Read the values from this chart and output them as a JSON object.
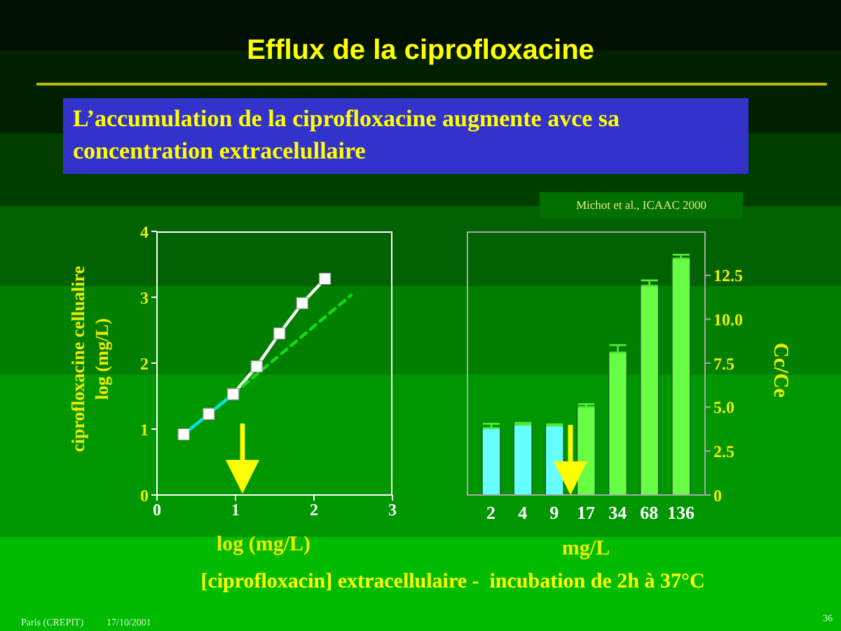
{
  "chart_data": [
    {
      "type": "other",
      "title": "Efflux de la ciprofloxacine",
      "subtitle": "L’accumulation de la ciprofloxacine augmente avce sa concentration extracelullaire",
      "annotations": [
        "[ciprofloxacin] extracellulaire -  incubation de 2h à 37°C",
        "Paris (CREPIT)",
        "17/10/2001",
        "36"
      ]
    },
    {
      "type": "line",
      "xlabel": "log (mg/L)",
      "ylabel": "ciprofloxacine cellualire\nlog (mg/L)",
      "xlim": [
        0,
        3
      ],
      "xticks": [
        0,
        1,
        2,
        3
      ],
      "ylim": [
        0,
        4
      ],
      "yticks": [
        0,
        1,
        2,
        3,
        4
      ],
      "series": [
        {
          "type": "line",
          "color": "#00e5ee",
          "x": [
            0.34,
            0.66,
            0.97
          ],
          "values": [
            0.92,
            1.23,
            1.53
          ]
        },
        {
          "type": "line",
          "color": "#ffffff",
          "x": [
            0.97,
            1.27,
            1.56,
            1.85,
            2.14
          ],
          "values": [
            1.53,
            1.95,
            2.45,
            2.91,
            3.28
          ]
        },
        {
          "type": "line",
          "color": "#11dd11",
          "line_style": "dashed",
          "x": [
            0.97,
            2.47
          ],
          "values": [
            1.53,
            3.03
          ]
        },
        {
          "type": "scatter",
          "color": "#ffffff",
          "marker": "square",
          "x": [
            0.34,
            0.66,
            0.97,
            1.27,
            1.56,
            1.85,
            2.14
          ],
          "values": [
            0.92,
            1.23,
            1.53,
            1.95,
            2.45,
            2.91,
            3.28
          ]
        }
      ]
    },
    {
      "type": "bar",
      "xlabel": "mg/L",
      "ylabel": "Cc/Ce",
      "categories": [
        "2",
        "4",
        "9",
        "17",
        "34",
        "68",
        "136"
      ],
      "values": [
        3.8,
        4.0,
        3.95,
        5.0,
        8.1,
        11.9,
        13.45
      ],
      "colors": [
        "#66ffff",
        "#66ffff",
        "#66ffff",
        "#66ff44",
        "#66ff44",
        "#66ff44",
        "#66ff44"
      ],
      "errors": [
        [
          3.8,
          4.05
        ],
        [
          4.0,
          4.1
        ],
        [
          3.95,
          4.02
        ],
        [
          5.0,
          5.17
        ],
        [
          8.1,
          8.53
        ],
        [
          11.9,
          12.21
        ],
        [
          13.45,
          13.67
        ]
      ],
      "ylim": [
        0,
        15
      ],
      "yticks": [
        0,
        2.5,
        {
          "value": 5,
          "label": "5.0"
        },
        {
          "value": 7.5,
          "label": "7.5"
        },
        {
          "value": 10,
          "label": "10.0"
        },
        12.5
      ],
      "annotations": [
        "Michot et al., ICAAC 2000"
      ]
    }
  ]
}
